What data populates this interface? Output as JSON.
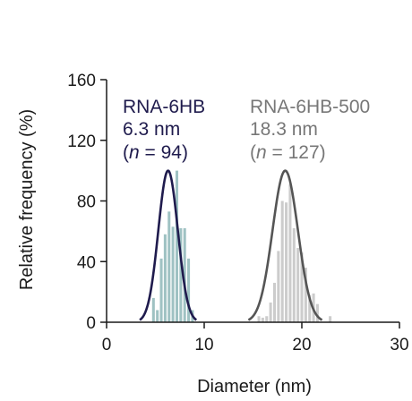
{
  "chart_data": {
    "type": "bar",
    "title": "",
    "xlabel": "Diameter (nm)",
    "ylabel": "Relative frequency (%)",
    "xlim": [
      0,
      30
    ],
    "ylim": [
      0,
      160
    ],
    "xticks": [
      0,
      10,
      20,
      30
    ],
    "yticks": [
      0,
      40,
      80,
      120,
      160
    ],
    "grid": false,
    "series": [
      {
        "name": "RNA-6HB",
        "size_label": "6.3 nm",
        "n_prefix": "(",
        "n_var": "n",
        "n_suffix": " = 94)",
        "text_color": "#1f1b4d",
        "bar_color": "#9fc2c3",
        "fit_color": "#1f1b4d",
        "bins_x": [
          4.8,
          5.2,
          5.6,
          6.0,
          6.4,
          6.8,
          7.2,
          7.6,
          8.0,
          8.4,
          8.8
        ],
        "bins_y": [
          16,
          8,
          42,
          58,
          73,
          63,
          100,
          62,
          62,
          42,
          8
        ],
        "fit_mean": 6.3,
        "fit_sigma": 1.0,
        "fit_peak": 100
      },
      {
        "name": "RNA-6HB-500",
        "size_label": "18.3 nm",
        "n_prefix": "(",
        "n_var": "n",
        "n_suffix": " = 127)",
        "text_color": "#777777",
        "bar_color": "#cccccc",
        "fit_color": "#555555",
        "bins_x": [
          15.6,
          16.0,
          16.4,
          16.8,
          17.2,
          17.6,
          18.0,
          18.4,
          18.8,
          19.2,
          19.6,
          20.0,
          20.4,
          20.8,
          21.2,
          21.6,
          22.9
        ],
        "bins_y": [
          4,
          3,
          4,
          13,
          26,
          47,
          80,
          79,
          91,
          62,
          49,
          46,
          36,
          18,
          19,
          12,
          4
        ],
        "fit_mean": 18.3,
        "fit_sigma": 1.3,
        "fit_peak": 100
      }
    ]
  }
}
